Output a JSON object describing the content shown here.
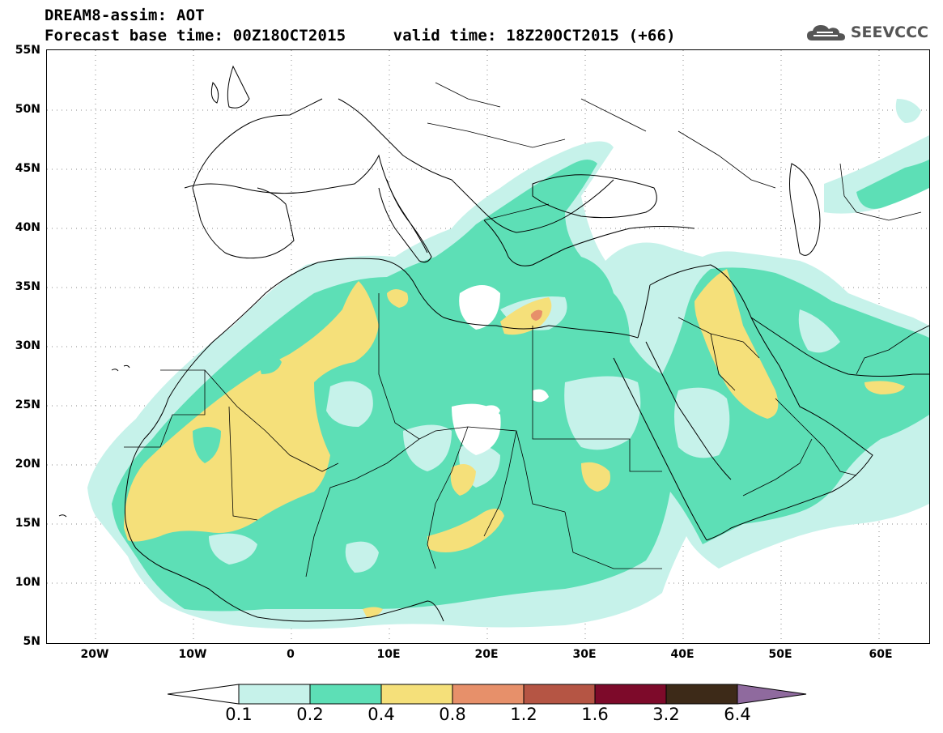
{
  "header": {
    "line1": "DREAM8-assim: AOT",
    "line2": "Forecast base time: 00Z18OCT2015     valid time: 18Z20OCT2015 (+66)"
  },
  "logo": {
    "text": "SEEVCCC",
    "icon": "cloud-icon"
  },
  "map": {
    "variable": "AOT",
    "lat_labels": [
      "55N",
      "50N",
      "45N",
      "40N",
      "35N",
      "30N",
      "25N",
      "20N",
      "15N",
      "10N",
      "5N"
    ],
    "lon_labels": [
      "20W",
      "10W",
      "0",
      "10E",
      "20E",
      "30E",
      "40E",
      "50E",
      "60E"
    ],
    "lat_range": [
      5,
      55
    ],
    "lon_range": [
      -25,
      65
    ],
    "grid": "dotted"
  },
  "colorbar": {
    "ticks": [
      "0.1",
      "0.2",
      "0.4",
      "0.8",
      "1.2",
      "1.6",
      "3.2",
      "6.4"
    ],
    "colors": [
      "#c6f2ea",
      "#5ddfb6",
      "#f5e07a",
      "#e7906a",
      "#b55544",
      "#7d0a2a",
      "#3d2a18",
      "#8f6a9e"
    ],
    "below_color": "#ffffff"
  },
  "colors": {
    "light": "#c6f2ea",
    "teal": "#5ddfb6",
    "yellow": "#f5e07a",
    "orange": "#e7906a",
    "coast": "#000000"
  }
}
